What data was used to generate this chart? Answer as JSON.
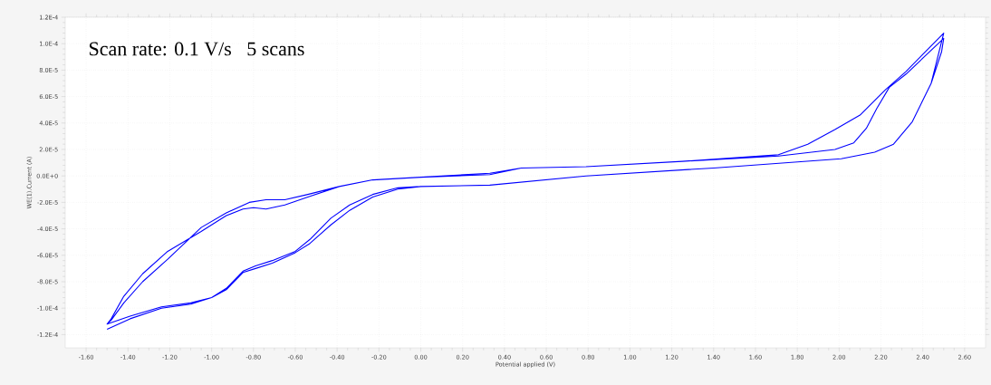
{
  "chart_data": {
    "type": "line",
    "xlabel": "Potential applied (V)",
    "ylabel": "WE(1).Current (A)",
    "annotations": [
      "Scan rate: 0.1 V/s   5 scans"
    ],
    "xlim": [
      -1.7,
      2.7
    ],
    "ylim": [
      -0.00013,
      0.00012
    ],
    "xticks": [
      {
        "value": -1.6,
        "label": "-1.60"
      },
      {
        "value": -1.4,
        "label": "-1.40"
      },
      {
        "value": -1.2,
        "label": "-1.20"
      },
      {
        "value": -1.0,
        "label": "-1.00"
      },
      {
        "value": -0.8,
        "label": "-0.80"
      },
      {
        "value": -0.6,
        "label": "-0.60"
      },
      {
        "value": -0.4,
        "label": "-0.40"
      },
      {
        "value": -0.2,
        "label": "-0.20"
      },
      {
        "value": 0,
        "label": "0.00"
      },
      {
        "value": 0.2,
        "label": "0.20"
      },
      {
        "value": 0.4,
        "label": "0.40"
      },
      {
        "value": 0.6,
        "label": "0.60"
      },
      {
        "value": 0.8,
        "label": "0.80"
      },
      {
        "value": 1.0,
        "label": "1.00"
      },
      {
        "value": 1.2,
        "label": "1.20"
      },
      {
        "value": 1.4,
        "label": "1.40"
      },
      {
        "value": 1.6,
        "label": "1.60"
      },
      {
        "value": 1.8,
        "label": "1.80"
      },
      {
        "value": 2.0,
        "label": "2.00"
      },
      {
        "value": 2.2,
        "label": "2.20"
      },
      {
        "value": 2.4,
        "label": "2.40"
      },
      {
        "value": 2.6,
        "label": "2.60"
      }
    ],
    "yticks": [
      {
        "value": -0.00012,
        "label": "-1.2E-4"
      },
      {
        "value": -0.0001,
        "label": "-1.0E-4"
      },
      {
        "value": -8e-05,
        "label": "-8.0E-5"
      },
      {
        "value": -6e-05,
        "label": "-6.0E-5"
      },
      {
        "value": -4e-05,
        "label": "-4.0E-5"
      },
      {
        "value": -2e-05,
        "label": "-2.0E-5"
      },
      {
        "value": 0,
        "label": "0.0E+0"
      },
      {
        "value": 2e-05,
        "label": "2.0E-5"
      },
      {
        "value": 4e-05,
        "label": "4.0E-5"
      },
      {
        "value": 6e-05,
        "label": "6.0E-5"
      },
      {
        "value": 8e-05,
        "label": "8.0E-5"
      },
      {
        "value": 0.0001,
        "label": "1.0E-4"
      },
      {
        "value": 0.00012,
        "label": "1.2E-4"
      }
    ],
    "grid": true,
    "marker": "none",
    "line_style": "solid",
    "series": [
      {
        "color": "#0000ff",
        "x": [
          -1.5,
          -1.39,
          -1.24,
          -1.1,
          -1.0,
          -0.93,
          -0.85,
          -0.79,
          -0.71,
          -0.6,
          -0.53,
          -0.43,
          -0.34,
          -0.23,
          -0.11,
          0,
          0.33,
          0.79,
          1.4,
          2.01,
          2.17,
          2.26,
          2.35,
          2.44,
          2.49,
          2.5,
          2.32,
          2.24,
          2.18,
          2.13,
          2.07,
          1.98,
          1.71,
          1.25,
          0.79,
          0.48,
          0.33,
          0,
          -0.23,
          -0.39,
          -0.54,
          -0.65,
          -0.74,
          -0.8,
          -0.85,
          -0.93,
          -1.05,
          -1.21,
          -1.33,
          -1.42,
          -1.48,
          -1.5,
          -1.39,
          -1.24,
          -1.1,
          -1.0,
          -0.93,
          -0.85,
          -0.79,
          -0.71,
          -0.6,
          -0.53,
          -0.43,
          -0.34,
          -0.23,
          -0.11,
          0,
          0.33,
          0.79,
          1.4,
          2.01,
          2.17,
          2.26,
          2.35,
          2.44,
          2.5,
          2.32,
          2.22,
          2.1,
          1.98,
          1.85,
          1.71,
          1.25,
          0.79,
          0.48,
          0.33,
          0,
          -0.23,
          -0.39,
          -0.54,
          -0.65,
          -0.74,
          -0.82,
          -0.93,
          -1.05,
          -1.21,
          -1.33,
          -1.42,
          -1.48,
          -1.5
        ],
        "values": [
          -0.000116,
          -0.000108,
          -0.0001,
          -9.7e-05,
          -9.2e-05,
          -8.5e-05,
          -7.2e-05,
          -6.8e-05,
          -6.4e-05,
          -5.7e-05,
          -4.8e-05,
          -3.2e-05,
          -2.2e-05,
          -1.4e-05,
          -9e-06,
          -8e-06,
          -7e-06,
          0,
          6e-06,
          1.3e-05,
          1.8e-05,
          2.4e-05,
          4.1e-05,
          7e-05,
          9.4e-05,
          0.000104,
          7.7e-05,
          6.7e-05,
          5.1e-05,
          3.6e-05,
          2.5e-05,
          2e-05,
          1.5e-05,
          1.1e-05,
          7e-06,
          6e-06,
          1e-06,
          -1e-06,
          -3e-06,
          -8e-06,
          -1.6e-05,
          -2.2e-05,
          -2.5e-05,
          -2.4e-05,
          -2.5e-05,
          -3e-05,
          -4.2e-05,
          -5.7e-05,
          -7.4e-05,
          -9.1e-05,
          -0.000108,
          -0.000112,
          -0.000106,
          -9.9e-05,
          -9.6e-05,
          -9.2e-05,
          -8.6e-05,
          -7.3e-05,
          -7e-05,
          -6.6e-05,
          -5.8e-05,
          -5.1e-05,
          -3.7e-05,
          -2.6e-05,
          -1.6e-05,
          -1e-05,
          -8e-06,
          -7e-06,
          0,
          6e-06,
          1.3e-05,
          1.8e-05,
          2.4e-05,
          4.1e-05,
          7e-05,
          0.000108,
          7.9e-05,
          6.5e-05,
          4.6e-05,
          3.5e-05,
          2.4e-05,
          1.6e-05,
          1.1e-05,
          7e-06,
          6e-06,
          2e-06,
          -1e-06,
          -3e-06,
          -8e-06,
          -1.4e-05,
          -1.8e-05,
          -1.8e-05,
          -2e-05,
          -2.8e-05,
          -3.9e-05,
          -6.3e-05,
          -8e-05,
          -9.6e-05,
          -0.000109,
          -0.000112
        ]
      }
    ]
  }
}
